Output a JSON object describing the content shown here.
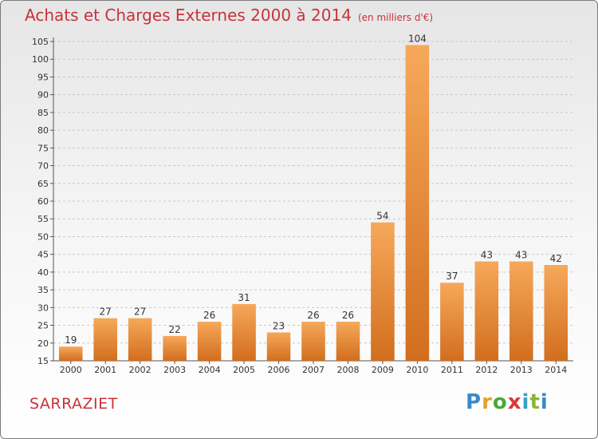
{
  "header": {
    "title": "Achats et Charges Externes 2000 à 2014",
    "subtitle": "(en milliers d'€)"
  },
  "footer": {
    "place": "SARRAZIET",
    "logo": "Proxiti"
  },
  "colors": {
    "title": "#c8323c",
    "bar_light": "#f6a85a",
    "bar_dark": "#d26e1e",
    "grid": "#c8c8c8"
  },
  "chart_data": {
    "type": "bar",
    "title": "Achats et Charges Externes 2000 à 2014",
    "subtitle": "(en milliers d'€)",
    "categories": [
      "2000",
      "2001",
      "2002",
      "2003",
      "2004",
      "2005",
      "2006",
      "2007",
      "2008",
      "2009",
      "2010",
      "2011",
      "2012",
      "2013",
      "2014"
    ],
    "values": [
      19,
      27,
      27,
      22,
      26,
      31,
      23,
      26,
      26,
      54,
      104,
      37,
      43,
      43,
      42
    ],
    "ylim": [
      15,
      105
    ],
    "yticks": [
      15,
      20,
      25,
      30,
      35,
      40,
      45,
      50,
      55,
      60,
      65,
      70,
      75,
      80,
      85,
      90,
      95,
      100,
      105
    ],
    "grid": true,
    "data_labels": true
  }
}
